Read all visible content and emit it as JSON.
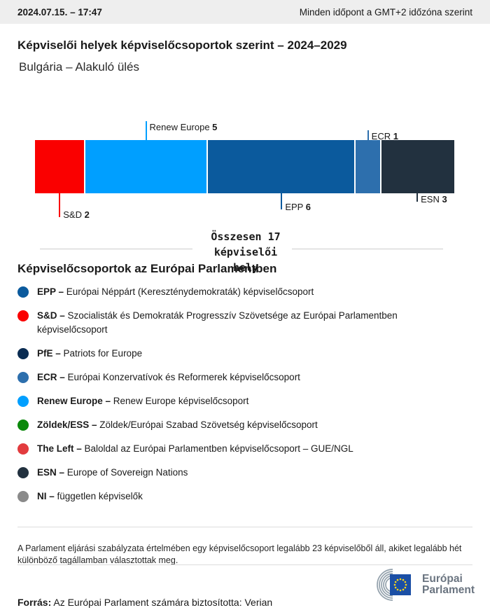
{
  "header": {
    "datetime": "2024.07.15. – 17:47",
    "timezone_note": "Minden időpont a GMT+2 időzóna szerint"
  },
  "title": "Képviselői helyek képviselőcsoportok szerint – 2024–2029",
  "subtitle": "Bulgária – Alakuló ülés",
  "chart_data": {
    "type": "bar",
    "orientation": "horizontal-stacked",
    "title": "Képviselői helyek képviselőcsoportok szerint – 2024–2029",
    "subtitle": "Bulgária – Alakuló ülés",
    "total_seats": 17,
    "total_label": "Összesen 17 képviselői hely",
    "categories": [
      "S&D",
      "Renew Europe",
      "EPP",
      "ECR",
      "ESN"
    ],
    "values": [
      2,
      5,
      6,
      1,
      3
    ],
    "segments": [
      {
        "group": "S&D",
        "seats": 2,
        "color": "#FA0000",
        "callout": {
          "side": "below",
          "depth": 34
        }
      },
      {
        "group": "Renew Europe",
        "seats": 5,
        "color": "#009FFF",
        "callout": {
          "side": "above",
          "depth": 27
        }
      },
      {
        "group": "EPP",
        "seats": 6,
        "color": "#0B5A9D",
        "callout": {
          "side": "below",
          "depth": 23
        }
      },
      {
        "group": "ECR",
        "seats": 1,
        "color": "#2D6FAD",
        "callout": {
          "side": "above",
          "depth": 14
        }
      },
      {
        "group": "ESN",
        "seats": 3,
        "color": "#22313F",
        "callout": {
          "side": "below",
          "depth": 12
        }
      }
    ],
    "legend_position": "below",
    "grid": false
  },
  "legend": {
    "heading": "Képviselőcsoportok az Európai Parlamentben",
    "items": [
      {
        "abbr": "EPP –",
        "desc": "Európai Néppárt (Kereszténydemokraták) képviselőcsoport",
        "color": "#0B5A9D"
      },
      {
        "abbr": "S&D –",
        "desc": "Szocialisták és Demokraták Progresszív Szövetsége az Európai Parlamentben képviselőcsoport",
        "color": "#FA0000"
      },
      {
        "abbr": "PfE –",
        "desc": "Patriots for Europe",
        "color": "#0A2C52"
      },
      {
        "abbr": "ECR –",
        "desc": "Európai Konzervatívok és Reformerek képviselőcsoport",
        "color": "#2D6FAD"
      },
      {
        "abbr": "Renew Europe –",
        "desc": "Renew Europe képviselőcsoport",
        "color": "#009FFF"
      },
      {
        "abbr": "Zöldek/ESS –",
        "desc": "Zöldek/Európai Szabad Szövetség képviselőcsoport",
        "color": "#0B890B"
      },
      {
        "abbr": "The Left –",
        "desc": "Baloldal az Európai Parlamentben képviselőcsoport – GUE/NGL",
        "color": "#E23B3E"
      },
      {
        "abbr": "ESN –",
        "desc": "Europe of Sovereign Nations",
        "color": "#22313F"
      },
      {
        "abbr": "NI –",
        "desc": "független képviselők",
        "color": "#8A8A8A"
      }
    ]
  },
  "footer": {
    "note": "A Parlament eljárási szabályzata értelmében egy képviselőcsoport legalább 23 képviselőből áll, akiket legalább hét különböző tagállamban választottak meg.",
    "source_label": "Forrás:",
    "source_text": " Az Európai Parlament számára biztosította: Verian",
    "logo_text_line1": "Európai",
    "logo_text_line2": "Parlament"
  }
}
